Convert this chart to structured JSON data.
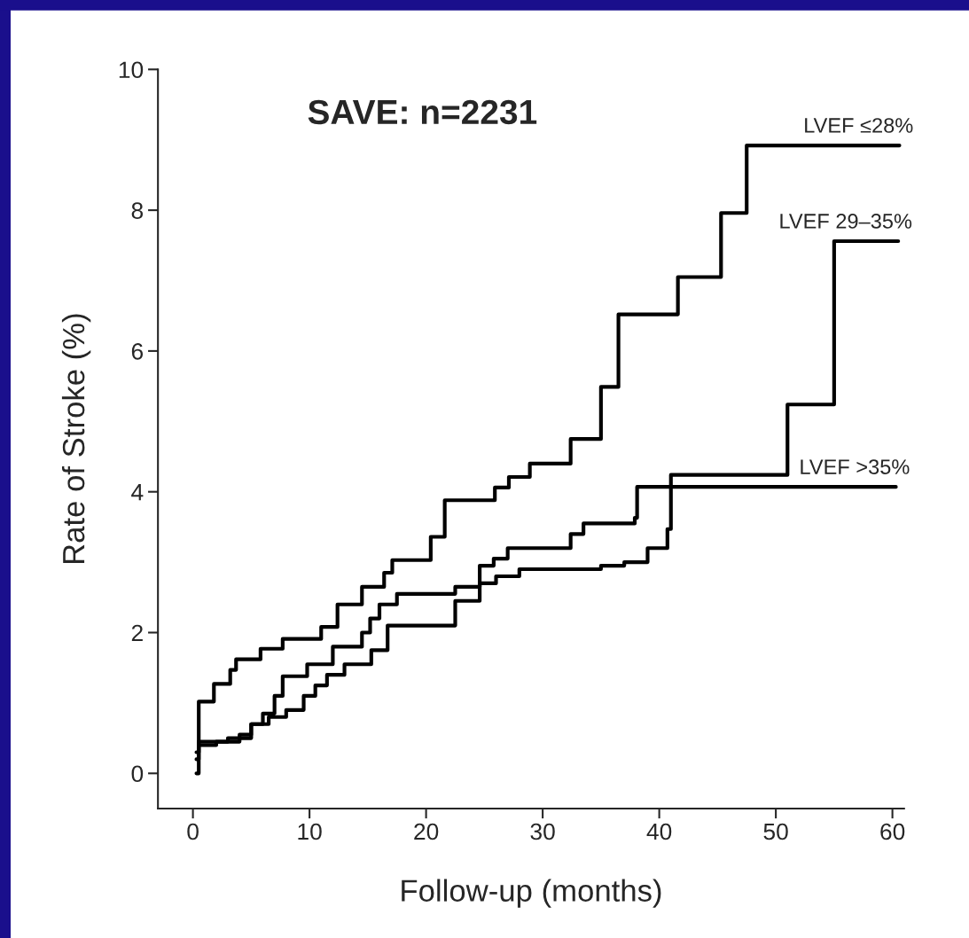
{
  "chart_data": {
    "type": "step",
    "title": "SAVE: n=2231",
    "xlabel": "Follow-up (months)",
    "ylabel": "Rate of Stroke (%)",
    "xlim": [
      -3,
      61
    ],
    "ylim": [
      -0.5,
      10
    ],
    "xticks": [
      0,
      10,
      20,
      30,
      40,
      50,
      60
    ],
    "yticks": [
      0,
      2,
      4,
      6,
      8,
      10
    ],
    "grid": false,
    "legend": false,
    "line_style": "solid",
    "series": [
      {
        "name": "LVEF ≤28%",
        "color": "#000000",
        "x": [
          0.3,
          0.5,
          1.8,
          3.2,
          3.7,
          5.8,
          7.7,
          11.0,
          12.4,
          14.5,
          16.4,
          17.1,
          20.4,
          21.6,
          25.9,
          27.1,
          28.9,
          32.4,
          35.0,
          36.5,
          41.6,
          45.3,
          47.5,
          60.6
        ],
        "values": [
          0.0,
          1.02,
          1.27,
          1.47,
          1.62,
          1.77,
          1.91,
          2.08,
          2.4,
          2.65,
          2.85,
          3.03,
          3.36,
          3.88,
          4.06,
          4.21,
          4.4,
          4.75,
          5.49,
          6.52,
          7.05,
          7.96,
          8.92,
          8.92
        ]
      },
      {
        "name": "LVEF 29–35%",
        "color": "#000000",
        "x": [
          0.3,
          0.5,
          2.0,
          4.0,
          5.0,
          6.0,
          7.0,
          7.7,
          9.8,
          12.0,
          14.5,
          15.2,
          16.0,
          17.5,
          22.5,
          24.6,
          26.0,
          28.0,
          35.0,
          37.0,
          39.0,
          40.7,
          41.0,
          51.0,
          55.0,
          60.5
        ],
        "values": [
          0.3,
          0.4,
          0.45,
          0.55,
          0.7,
          0.85,
          1.1,
          1.38,
          1.55,
          1.8,
          2.0,
          2.2,
          2.4,
          2.55,
          2.65,
          2.7,
          2.8,
          2.9,
          2.95,
          3.0,
          3.2,
          3.47,
          4.24,
          5.24,
          7.56,
          7.56
        ]
      },
      {
        "name": "LVEF >35%",
        "color": "#000000",
        "x": [
          0.3,
          0.5,
          3.0,
          5.0,
          6.5,
          8.0,
          9.5,
          10.5,
          11.5,
          13.0,
          15.3,
          16.7,
          22.5,
          24.6,
          25.8,
          27.0,
          32.4,
          33.5,
          37.9,
          38.1,
          60.3
        ],
        "values": [
          0.2,
          0.45,
          0.5,
          0.7,
          0.8,
          0.9,
          1.1,
          1.25,
          1.4,
          1.55,
          1.75,
          2.1,
          2.45,
          2.95,
          3.05,
          3.2,
          3.4,
          3.55,
          3.63,
          4.07,
          4.07
        ]
      }
    ]
  }
}
